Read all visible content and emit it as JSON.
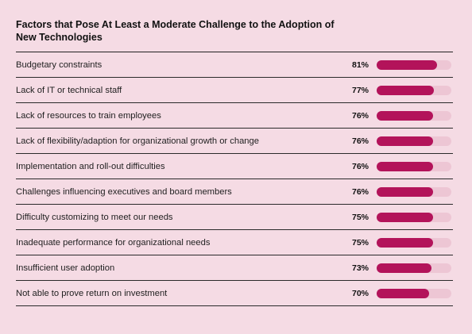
{
  "chart_data": {
    "type": "bar",
    "orientation": "horizontal",
    "title": "Factors that Pose At Least a Moderate Challenge to the Adoption of New Technologies",
    "categories": [
      "Budgetary constraints",
      "Lack of IT or technical staff",
      "Lack of resources to train employees",
      "Lack of flexibility/adaption for organizational growth or change",
      "Implementation and roll-out difficulties",
      "Challenges influencing executives and board members",
      "Difficulty customizing to meet our needs",
      "Inadequate performance for organizational needs",
      "Insufficient user adoption",
      "Not able to prove return on investment"
    ],
    "values": [
      81,
      77,
      76,
      76,
      76,
      76,
      75,
      75,
      73,
      70
    ],
    "value_labels": [
      "81%",
      "77%",
      "76%",
      "76%",
      "76%",
      "76%",
      "75%",
      "75%",
      "73%",
      "70%"
    ],
    "xlim": [
      0,
      100
    ],
    "colors": {
      "bar": "#b3135a",
      "track": "#edc6d4",
      "background": "#f5dbe4"
    }
  }
}
